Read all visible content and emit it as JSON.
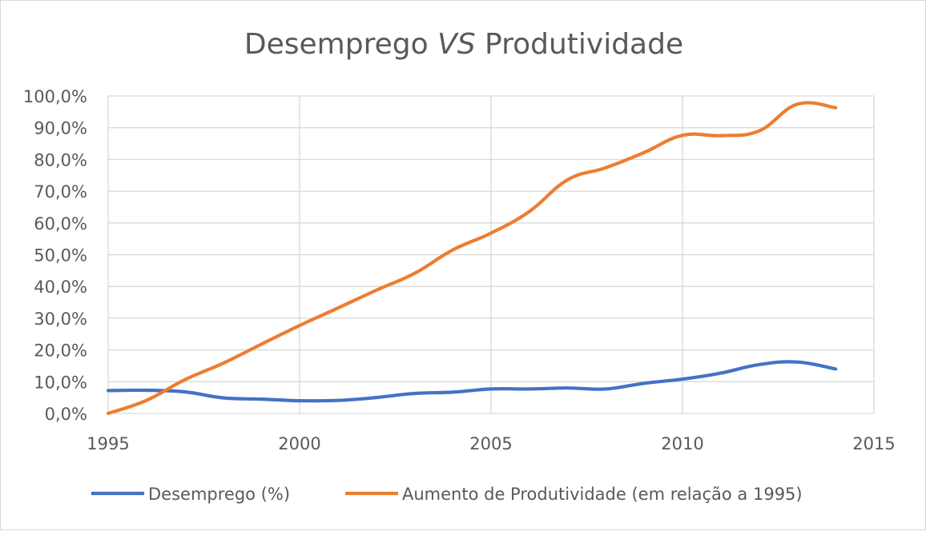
{
  "chart_data": {
    "type": "line",
    "title_prefix": "Desemprego ",
    "title_italic": "VS",
    "title_suffix": " Produtividade",
    "xlim": [
      1995,
      2015
    ],
    "ylim": [
      0,
      100
    ],
    "x_ticks": [
      "1995",
      "2000",
      "2005",
      "2010",
      "2015"
    ],
    "y_ticks": [
      "0,0%",
      "10,0%",
      "20,0%",
      "30,0%",
      "40,0%",
      "50,0%",
      "60,0%",
      "70,0%",
      "80,0%",
      "90,0%",
      "100,0%"
    ],
    "grid": true,
    "legend_position": "bottom",
    "x": [
      1995,
      1996,
      1997,
      1998,
      1999,
      2000,
      2001,
      2002,
      2003,
      2004,
      2005,
      2006,
      2007,
      2008,
      2009,
      2010,
      2011,
      2012,
      2013,
      2014
    ],
    "series": [
      {
        "name": "Desemprego (%)",
        "color": "#4472c4",
        "values": [
          7.2,
          7.3,
          6.8,
          4.9,
          4.5,
          4.0,
          4.1,
          5.0,
          6.3,
          6.7,
          7.7,
          7.7,
          8.0,
          7.7,
          9.5,
          10.8,
          12.7,
          15.4,
          16.2,
          14.0
        ]
      },
      {
        "name": "Aumento de Produtividade (em relação a 1995)",
        "color": "#ed7d31",
        "values": [
          0.0,
          4.1,
          10.6,
          15.8,
          21.8,
          27.7,
          33.2,
          38.8,
          44.1,
          51.5,
          56.8,
          63.6,
          73.6,
          77.4,
          82.2,
          87.6,
          87.5,
          89.0,
          97.4,
          96.3
        ]
      }
    ]
  }
}
